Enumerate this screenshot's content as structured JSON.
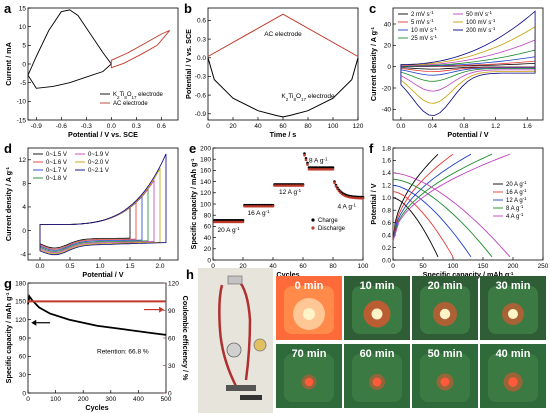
{
  "panels": {
    "a": {
      "letter": "a",
      "xlabel": "Potential / V vs. SCE",
      "ylabel": "Current / mA",
      "legend": [
        "K2Ti8O17 electrode",
        "AC electrode"
      ],
      "legend_html": [
        "K<tspan baseline-shift='sub' font-size='4.5'>2</tspan>Ti<tspan baseline-shift='sub' font-size='4.5'>8</tspan>O<tspan baseline-shift='sub' font-size='4.5'>17</tspan> electrode"
      ]
    },
    "b": {
      "letter": "b",
      "xlabel": "Time / s",
      "ylabel": "Potential / V vs. SCE",
      "ann1": "AC electrode",
      "ann2": "K2Ti8O17 electrode"
    },
    "c": {
      "letter": "c",
      "xlabel": "Potential / V",
      "ylabel": "Current density / A g-1",
      "legend": [
        "2 mV s-1",
        "5 mV s-1",
        "10 mV s-1",
        "25 mV s-1",
        "50 mV s-1",
        "100 mV s-1",
        "200 mV s-1"
      ]
    },
    "d": {
      "letter": "d",
      "xlabel": "Potential / V",
      "ylabel": "Current density / A g-1",
      "legend": [
        "0~1.5 V",
        "0~1.6 V",
        "0~1.7 V",
        "0~1.8 V",
        "0~1.9 V",
        "0~2.0 V",
        "0~2.1 V"
      ]
    },
    "e": {
      "letter": "e",
      "xlabel": "Cycles",
      "ylabel": "Specific capacity / mAh g-1",
      "legend": [
        "Charge",
        "Discharge"
      ],
      "rates": [
        "20 A g-1",
        "16 A g-1",
        "12 A g-1",
        "8 A g-1",
        "4 A g-1"
      ]
    },
    "f": {
      "letter": "f",
      "xlabel": "Specific capacity / mAh g-1",
      "ylabel": "Potential / V",
      "legend": [
        "20 A g-1",
        "16 A g-1",
        "12 A g-1",
        "8 A g-1",
        "4 A g-1"
      ]
    },
    "g": {
      "letter": "g",
      "xlabel": "Cycles",
      "ylabel": "Specific capacity / mAh g-1",
      "ylabel2": "Coulombic efficiency / %",
      "retention": "Retention: 66.8 %"
    },
    "h": {
      "letter": "h",
      "times": [
        "0 min",
        "10 min",
        "20 min",
        "30 min",
        "70 min",
        "60 min",
        "50 min",
        "40 min"
      ]
    }
  },
  "colors": {
    "black": "#000000",
    "red": "#c0392b",
    "bright_red": "#e53935"
  },
  "chart_data": [
    {
      "id": "a",
      "type": "line",
      "xlim": [
        -1.0,
        0.8
      ],
      "ylim": [
        -15,
        15
      ],
      "xticks": [
        -0.9,
        -0.6,
        -0.3,
        0.0,
        0.3,
        0.6
      ],
      "yticks": [
        -15,
        -10,
        -5,
        0,
        5,
        10,
        15
      ],
      "series": [
        {
          "name": "K2Ti8O17 electrode",
          "x": [
            -1.0,
            -0.9,
            -0.75,
            -0.6,
            -0.5,
            -0.4,
            -0.25,
            -0.1,
            0.0,
            -0.1,
            -0.3,
            -0.5,
            -0.7,
            -0.9,
            -1.0
          ],
          "y": [
            -3,
            2,
            9,
            14,
            14.5,
            13,
            8,
            3,
            0,
            -2,
            -3.5,
            -5,
            -6,
            -6.5,
            -3
          ]
        },
        {
          "name": "AC electrode",
          "x": [
            0.0,
            0.2,
            0.4,
            0.6,
            0.7,
            0.55,
            0.35,
            0.15,
            0.0
          ],
          "y": [
            1,
            3,
            5.5,
            8,
            9,
            5,
            2.5,
            0.2,
            -1
          ]
        }
      ]
    },
    {
      "id": "b",
      "type": "line",
      "xlim": [
        0,
        120
      ],
      "ylim": [
        -1.0,
        0.8
      ],
      "xticks": [
        0,
        20,
        40,
        60,
        80,
        100,
        120
      ],
      "yticks": [
        -0.9,
        -0.6,
        -0.3,
        0.0,
        0.3,
        0.6
      ],
      "series": [
        {
          "name": "AC electrode",
          "x": [
            0,
            60,
            120
          ],
          "y": [
            0.02,
            0.7,
            0.02
          ]
        },
        {
          "name": "K2Ti8O17 electrode",
          "x": [
            0,
            5,
            20,
            40,
            55,
            60,
            65,
            80,
            100,
            115,
            120
          ],
          "y": [
            0.0,
            -0.35,
            -0.65,
            -0.85,
            -0.93,
            -0.95,
            -0.93,
            -0.85,
            -0.65,
            -0.35,
            0.0
          ]
        }
      ]
    },
    {
      "id": "c",
      "type": "line",
      "xlim": [
        -0.1,
        1.8
      ],
      "ylim": [
        -50,
        55
      ],
      "xticks": [
        0.0,
        0.4,
        0.8,
        1.2,
        1.6
      ],
      "yticks": [
        -40,
        -20,
        0,
        20,
        40
      ],
      "series": [
        {
          "name": "2 mV s-1",
          "peak": 2,
          "tail": 3
        },
        {
          "name": "5 mV s-1",
          "peak": 4,
          "tail": 5
        },
        {
          "name": "10 mV s-1",
          "peak": 7,
          "tail": 9
        },
        {
          "name": "25 mV s-1",
          "peak": 12,
          "tail": 15
        },
        {
          "name": "50 mV s-1",
          "peak": 20,
          "tail": 24
        },
        {
          "name": "100 mV s-1",
          "peak": 30,
          "tail": 36
        },
        {
          "name": "200 mV s-1",
          "peak": 40,
          "tail": 50
        }
      ]
    },
    {
      "id": "d",
      "type": "line",
      "xlim": [
        -0.2,
        2.3
      ],
      "ylim": [
        -5,
        14
      ],
      "xticks": [
        0.0,
        0.5,
        1.0,
        1.5,
        2.0
      ],
      "yticks": [
        -4,
        0,
        4,
        8,
        12
      ],
      "series": [
        {
          "name": "0~1.5 V",
          "vmax": 1.5,
          "imax": 4.0
        },
        {
          "name": "0~1.6 V",
          "vmax": 1.6,
          "imax": 4.8
        },
        {
          "name": "0~1.7 V",
          "vmax": 1.7,
          "imax": 5.8
        },
        {
          "name": "0~1.8 V",
          "vmax": 1.8,
          "imax": 7.0
        },
        {
          "name": "0~1.9 V",
          "vmax": 1.9,
          "imax": 8.5
        },
        {
          "name": "0~2.0 V",
          "vmax": 2.0,
          "imax": 10.5
        },
        {
          "name": "0~2.1 V",
          "vmax": 2.1,
          "imax": 13.0
        }
      ]
    },
    {
      "id": "e",
      "type": "scatter",
      "xlim": [
        0,
        100
      ],
      "ylim": [
        0,
        200
      ],
      "xticks": [
        0,
        20,
        40,
        60,
        80,
        100
      ],
      "yticks": [
        0,
        20,
        40,
        60,
        80,
        100,
        120,
        140,
        160,
        180,
        200
      ],
      "segments": [
        {
          "rate": "20 A g-1",
          "start": 1,
          "end": 20,
          "charge": 71,
          "discharge": 68
        },
        {
          "rate": "16 A g-1",
          "start": 21,
          "end": 40,
          "charge": 98,
          "discharge": 96
        },
        {
          "rate": "12 A g-1",
          "start": 41,
          "end": 60,
          "charge": 135,
          "discharge": 133
        },
        {
          "rate": "8 A g-1",
          "start": 61,
          "end": 80,
          "charge": 165,
          "discharge": 162,
          "first": 190
        },
        {
          "rate": "4 A g-1",
          "start": 81,
          "end": 100,
          "charge": 112,
          "discharge": 110,
          "first": 140
        }
      ]
    },
    {
      "id": "f",
      "type": "line",
      "xlim": [
        0,
        250
      ],
      "ylim": [
        0,
        1.8
      ],
      "xticks": [
        0,
        50,
        100,
        150,
        200,
        250
      ],
      "yticks": [
        0.0,
        0.2,
        0.4,
        0.6,
        0.8,
        1.0,
        1.2,
        1.4,
        1.6,
        1.8
      ],
      "series": [
        {
          "name": "20 A g-1",
          "cap": 75,
          "vstart": 1.0
        },
        {
          "name": "16 A g-1",
          "cap": 100,
          "vstart": 1.1
        },
        {
          "name": "12 A g-1",
          "cap": 130,
          "vstart": 1.2
        },
        {
          "name": "8 A g-1",
          "cap": 165,
          "vstart": 1.3
        },
        {
          "name": "4 A g-1",
          "cap": 195,
          "vstart": 1.4
        }
      ]
    },
    {
      "id": "g",
      "type": "line",
      "xlim": [
        0,
        500
      ],
      "ylim": [
        0,
        180
      ],
      "ylim2": [
        0,
        120
      ],
      "xticks": [
        0,
        100,
        200,
        300,
        400,
        500
      ],
      "yticks": [
        0,
        30,
        60,
        90,
        120,
        150,
        180
      ],
      "yticks2": [
        0,
        30,
        60,
        90,
        120
      ],
      "series": [
        {
          "name": "Specific capacity",
          "x": [
            0,
            5,
            15,
            40,
            80,
            150,
            250,
            350,
            450,
            500
          ],
          "y": [
            145,
            158,
            152,
            140,
            130,
            120,
            110,
            104,
            98,
            95
          ]
        },
        {
          "name": "Coulombic efficiency",
          "x": [
            0,
            500
          ],
          "y": [
            100,
            100
          ]
        }
      ]
    }
  ]
}
